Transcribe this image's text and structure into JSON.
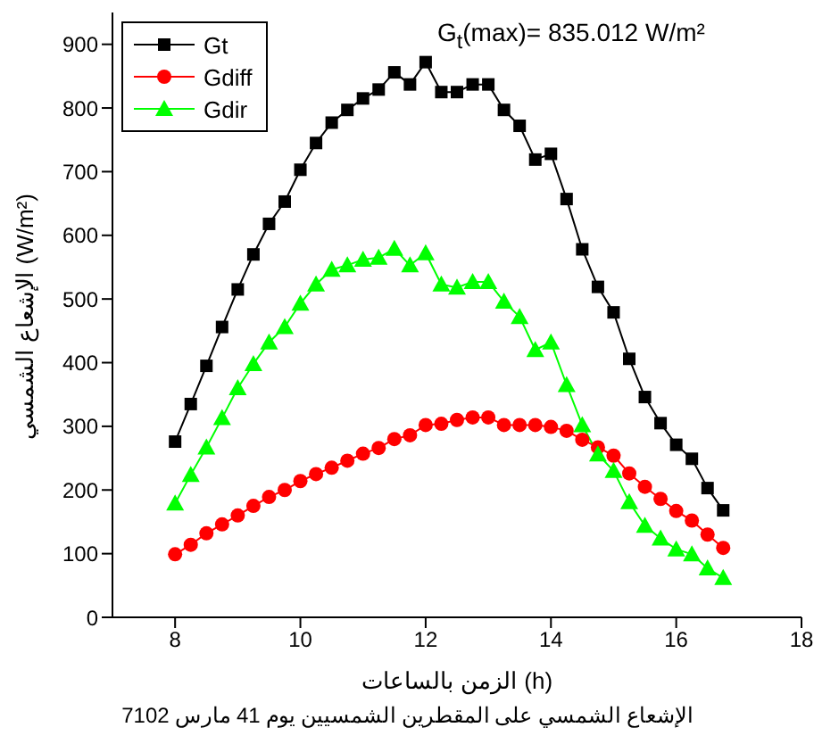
{
  "chart_data": {
    "type": "line",
    "xlabel": "الزمن بالساعات (h)",
    "ylabel": "الإشعاع الشمسي (W/m²)",
    "annotations": [
      "G$_{t}$(max)= 835.012 W/m²",
      "الإشعاع الشمسي على المقطرين الشمسيين يوم 41 مارس 7102"
    ],
    "x": [
      8,
      8.25,
      8.5,
      8.75,
      9,
      9.25,
      9.5,
      9.75,
      10,
      10.25,
      10.5,
      10.75,
      11,
      11.25,
      11.5,
      11.75,
      12,
      12.25,
      12.5,
      12.75,
      13,
      13.25,
      13.5,
      13.75,
      14,
      14.25,
      14.5,
      14.75,
      15,
      15.25,
      15.5,
      15.75,
      16,
      16.25,
      16.5,
      16.75
    ],
    "xlim": [
      7,
      18
    ],
    "xticks": [
      8,
      10,
      12,
      14,
      16,
      18
    ],
    "ylim": [
      0,
      950
    ],
    "yticks": [
      0,
      100,
      200,
      300,
      400,
      500,
      600,
      700,
      800,
      900
    ],
    "grid": false,
    "legend": "top left",
    "line_style": "solid",
    "series": [
      {
        "name": "Gt",
        "color": "#000000",
        "marker": "square",
        "values": [
          276,
          335,
          395,
          456,
          515,
          570,
          618,
          653,
          703,
          745,
          777,
          797,
          815,
          829,
          856,
          837,
          872,
          825,
          825,
          837,
          837,
          797,
          772,
          719,
          728,
          657,
          578,
          519,
          479,
          406,
          346,
          305,
          271,
          249,
          203,
          168
        ]
      },
      {
        "name": "Gdiff",
        "color": "#ff0000",
        "marker": "circle",
        "values": [
          99,
          114,
          132,
          146,
          160,
          175,
          189,
          200,
          214,
          225,
          235,
          246,
          257,
          266,
          280,
          286,
          302,
          304,
          310,
          314,
          314,
          302,
          302,
          302,
          299,
          293,
          279,
          267,
          254,
          226,
          205,
          186,
          167,
          152,
          130,
          109
        ]
      },
      {
        "name": "Gdir",
        "color": "#00ff00",
        "marker": "triangle",
        "values": [
          179,
          224,
          267,
          313,
          360,
          398,
          432,
          456,
          493,
          523,
          546,
          553,
          562,
          565,
          579,
          553,
          572,
          523,
          518,
          527,
          527,
          496,
          472,
          420,
          432,
          365,
          302,
          256,
          230,
          181,
          144,
          124,
          107,
          99,
          77,
          62
        ]
      }
    ]
  }
}
